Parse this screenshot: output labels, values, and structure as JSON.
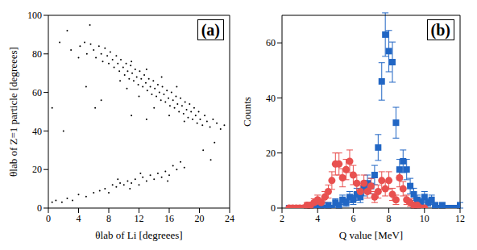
{
  "chart_data": [
    {
      "type": "scatter",
      "label": "(a)",
      "x_label": "θlab of Li [degreees]",
      "y_label": "θlab of Z=1 particle [degreees]",
      "xlim": [
        0,
        24
      ],
      "xticks": [
        0,
        4,
        8,
        12,
        16,
        20,
        24
      ],
      "ylim": [
        0,
        100
      ],
      "yticks": [
        0,
        20,
        40,
        60,
        80,
        100
      ],
      "series": [
        {
          "color": "#000000",
          "marker": "dot",
          "x": [
            4.2,
            4.8,
            5.1,
            5.6,
            6.0,
            6.3,
            6.7,
            7.0,
            7.2,
            7.5,
            7.8,
            8.0,
            8.2,
            8.5,
            8.7,
            9.0,
            9.2,
            9.4,
            9.6,
            9.9,
            10.1,
            10.3,
            10.5,
            10.7,
            10.9,
            11.1,
            11.3,
            11.5,
            11.7,
            11.9,
            12.1,
            12.3,
            12.5,
            12.7,
            12.9,
            13.1,
            13.3,
            13.5,
            13.7,
            13.9,
            14.1,
            14.3,
            14.5,
            14.7,
            14.9,
            15.1,
            15.3,
            15.5,
            15.7,
            15.9,
            16.1,
            16.3,
            16.5,
            16.7,
            16.9,
            17.1,
            17.3,
            17.5,
            17.7,
            17.9,
            18.1,
            18.3,
            18.5,
            18.7,
            18.9,
            19.1,
            19.3,
            19.5,
            19.7,
            19.9,
            20.1,
            20.4,
            20.7,
            21.0,
            21.4,
            21.8,
            22.3,
            22.8,
            23.3,
            10.4,
            12.0,
            14.0,
            16.0,
            18.0,
            9.5,
            11.0,
            13.0,
            15.0,
            17.0,
            0.5,
            1.0,
            1.8,
            2.5,
            3.2,
            4.0,
            5.0,
            6.0,
            6.8,
            7.5,
            8.0,
            8.5,
            9.0,
            9.5,
            10.0,
            10.5,
            11.0,
            11.5,
            12.0,
            12.5,
            13.0,
            13.5,
            14.0,
            14.5,
            15.0,
            15.5,
            16.0,
            16.5,
            17.0,
            17.5,
            18.0,
            12.2,
            10.8,
            9.2,
            15.8,
            2.5,
            3.0,
            4.0,
            5.5,
            5.0,
            6.2,
            7.0,
            11.0,
            13.0,
            2.0,
            22.0,
            20.5,
            1.5,
            0.5,
            21.5
          ],
          "values": [
            84,
            86,
            80,
            85,
            82,
            78,
            84,
            80,
            76,
            83,
            79,
            75,
            81,
            77,
            73,
            79,
            75,
            71,
            77,
            73,
            69,
            75,
            71,
            67,
            74,
            70,
            66,
            72,
            68,
            64,
            71,
            67,
            63,
            69,
            65,
            61,
            67,
            63,
            59,
            66,
            62,
            58,
            64,
            60,
            56,
            63,
            59,
            55,
            61,
            57,
            53,
            60,
            56,
            52,
            58,
            54,
            50,
            57,
            53,
            49,
            55,
            51,
            47,
            54,
            50,
            46,
            52,
            48,
            44,
            50,
            46,
            43,
            48,
            45,
            42,
            46,
            44,
            41,
            43,
            62,
            58,
            52,
            48,
            45,
            66,
            76,
            72,
            68,
            63,
            3,
            4,
            3,
            5,
            4,
            7,
            6,
            8,
            9,
            10,
            8,
            12,
            11,
            13,
            12,
            14,
            13,
            15,
            12,
            16,
            14,
            17,
            15,
            18,
            16,
            19,
            17,
            22,
            20,
            24,
            21,
            18,
            10,
            15,
            14,
            92,
            82,
            78,
            95,
            63,
            52,
            56,
            48,
            46,
            40,
            34,
            30,
            86,
            52,
            25
          ]
        }
      ]
    },
    {
      "type": "scatter",
      "label": "(b)",
      "x_label": "Q value  [MeV]",
      "y_label": "Counts",
      "xlim": [
        2,
        12
      ],
      "xticks": [
        2,
        4,
        6,
        8,
        10,
        12
      ],
      "ylim": [
        0,
        70
      ],
      "yticks": [
        0,
        20,
        40,
        60
      ],
      "series": [
        {
          "color": "#2166c4",
          "marker": "square",
          "x": [
            2.4,
            2.6,
            2.8,
            3.0,
            3.2,
            3.4,
            3.6,
            3.8,
            4.0,
            4.2,
            4.4,
            4.6,
            4.8,
            5.0,
            5.2,
            5.4,
            5.6,
            5.8,
            6.0,
            6.2,
            6.4,
            6.6,
            6.8,
            7.0,
            7.2,
            7.4,
            7.6,
            7.8,
            8.0,
            8.2,
            8.4,
            8.6,
            8.8,
            9.0,
            9.2,
            9.4,
            9.6,
            9.8,
            10.0,
            10.2,
            10.4,
            10.6,
            10.8,
            11.0,
            11.2,
            11.4,
            11.6,
            11.8,
            12.0
          ],
          "values": [
            0,
            0,
            0,
            0,
            0,
            0,
            0,
            0,
            0,
            1,
            0,
            1,
            0,
            2,
            1,
            3,
            2,
            4,
            3,
            5,
            4,
            7,
            9,
            8,
            12,
            22,
            46,
            63,
            57,
            53,
            31,
            14,
            17,
            14,
            8,
            5,
            3,
            2,
            4,
            2,
            3,
            1,
            0,
            1,
            0,
            0,
            0,
            0,
            1
          ],
          "errors": [
            0,
            0,
            0,
            0,
            0,
            0,
            0,
            0,
            0,
            1,
            0,
            1,
            0,
            1.4,
            1,
            1.7,
            1.4,
            2,
            1.7,
            2.2,
            2,
            2.6,
            3,
            2.8,
            3.5,
            4.7,
            6.8,
            7.9,
            7.5,
            7.3,
            5.6,
            3.7,
            4.1,
            3.7,
            2.8,
            2.2,
            1.7,
            1.4,
            2,
            1.4,
            1.7,
            1,
            0,
            1,
            0,
            0,
            0,
            0,
            1
          ]
        },
        {
          "color": "#e8504f",
          "marker": "circle",
          "x": [
            2.4,
            2.6,
            2.8,
            3.0,
            3.2,
            3.4,
            3.6,
            3.8,
            4.0,
            4.2,
            4.4,
            4.6,
            4.8,
            5.0,
            5.2,
            5.4,
            5.6,
            5.8,
            6.0,
            6.2,
            6.4,
            6.6,
            6.8,
            7.0,
            7.2,
            7.4,
            7.6,
            7.8,
            8.0,
            8.2,
            8.4,
            8.6,
            8.8,
            9.0,
            9.2,
            9.4,
            9.6,
            9.8,
            10.0
          ],
          "values": [
            0,
            0,
            0,
            0,
            0,
            1,
            1,
            2,
            3,
            2,
            4,
            6,
            10,
            16,
            16,
            11,
            14,
            17,
            12,
            9,
            6,
            9,
            6,
            8,
            4,
            6,
            10,
            7,
            10,
            5,
            3,
            11,
            7,
            3,
            2,
            1,
            1,
            0,
            0
          ],
          "errors": [
            0,
            0,
            0,
            0,
            0,
            1,
            1,
            1.4,
            1.7,
            1.4,
            2,
            2.4,
            3.2,
            4,
            4,
            3.3,
            3.7,
            4.1,
            3.5,
            3,
            2.4,
            3,
            2.4,
            2.8,
            2,
            2.4,
            3.2,
            2.6,
            3.2,
            2.2,
            1.7,
            3.3,
            2.6,
            1.7,
            1.4,
            1,
            1,
            0,
            0
          ]
        }
      ]
    }
  ]
}
